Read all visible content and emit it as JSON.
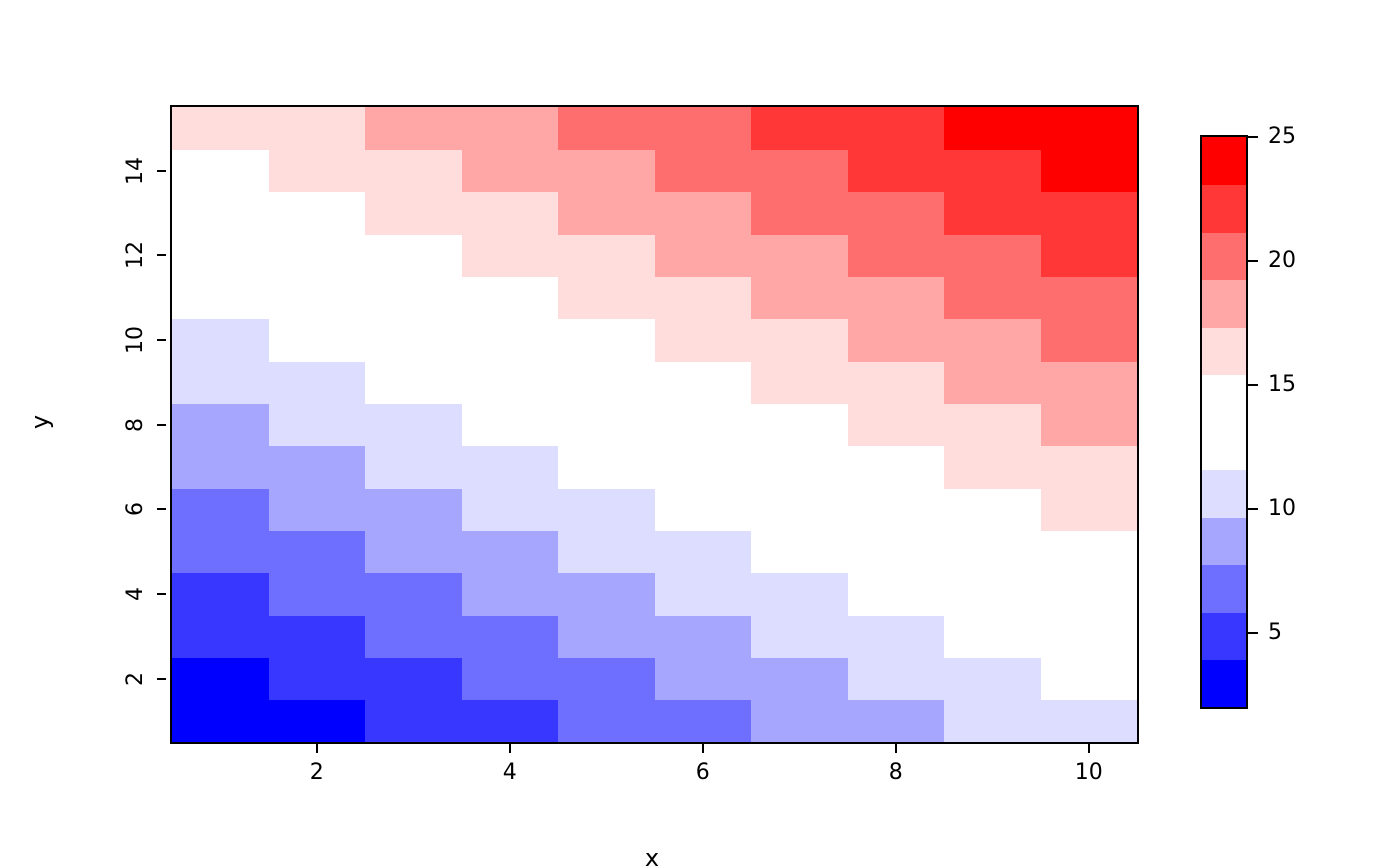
{
  "chart_data": {
    "type": "heatmap",
    "title": "",
    "xlabel": "x",
    "ylabel": "y",
    "x": [
      1,
      2,
      3,
      4,
      5,
      6,
      7,
      8,
      9,
      10
    ],
    "y": [
      1,
      2,
      3,
      4,
      5,
      6,
      7,
      8,
      9,
      10,
      11,
      12,
      13,
      14,
      15
    ],
    "x_range": [
      0.5,
      10.5
    ],
    "y_range": [
      0.5,
      15.5
    ],
    "x_ticks": [
      2,
      4,
      6,
      8,
      10
    ],
    "y_ticks": [
      2,
      4,
      6,
      8,
      10,
      12,
      14
    ],
    "zlim": [
      2,
      25
    ],
    "values_row_order": "y = 1 (bottom) to y = 15 (top)",
    "values": [
      [
        2,
        3,
        4,
        5,
        6,
        7,
        8,
        9,
        10,
        11
      ],
      [
        3,
        4,
        5,
        6,
        7,
        8,
        9,
        10,
        11,
        12
      ],
      [
        4,
        5,
        6,
        7,
        8,
        9,
        10,
        11,
        12,
        13
      ],
      [
        5,
        6,
        7,
        8,
        9,
        10,
        11,
        12,
        13,
        14
      ],
      [
        6,
        7,
        8,
        9,
        10,
        11,
        12,
        13,
        14,
        15
      ],
      [
        7,
        8,
        9,
        10,
        11,
        12,
        13,
        14,
        15,
        16
      ],
      [
        8,
        9,
        10,
        11,
        12,
        13,
        14,
        15,
        16,
        17
      ],
      [
        9,
        10,
        11,
        12,
        13,
        14,
        15,
        16,
        17,
        18
      ],
      [
        10,
        11,
        12,
        13,
        14,
        15,
        16,
        17,
        18,
        19
      ],
      [
        11,
        12,
        13,
        14,
        15,
        16,
        17,
        18,
        19,
        20
      ],
      [
        12,
        13,
        14,
        15,
        16,
        17,
        18,
        19,
        20,
        21
      ],
      [
        13,
        14,
        15,
        16,
        17,
        18,
        19,
        20,
        21,
        22
      ],
      [
        14,
        15,
        16,
        17,
        18,
        19,
        20,
        21,
        22,
        23
      ],
      [
        15,
        16,
        17,
        18,
        19,
        20,
        21,
        22,
        23,
        24
      ],
      [
        16,
        17,
        18,
        19,
        20,
        21,
        22,
        23,
        24,
        25
      ]
    ],
    "colormap": {
      "colors": [
        "#0000FF",
        "#FFFFFF",
        "#FF0000"
      ],
      "n": 12,
      "low_color": "#0000FF",
      "mid_color": "#FFFFFF",
      "high_color": "#FF0000"
    },
    "colorbar": {
      "position": "right",
      "ticks": [
        5,
        10,
        15,
        20,
        25
      ]
    },
    "grid": false,
    "background": "#FFFFFF",
    "axis_color": "#000000"
  }
}
